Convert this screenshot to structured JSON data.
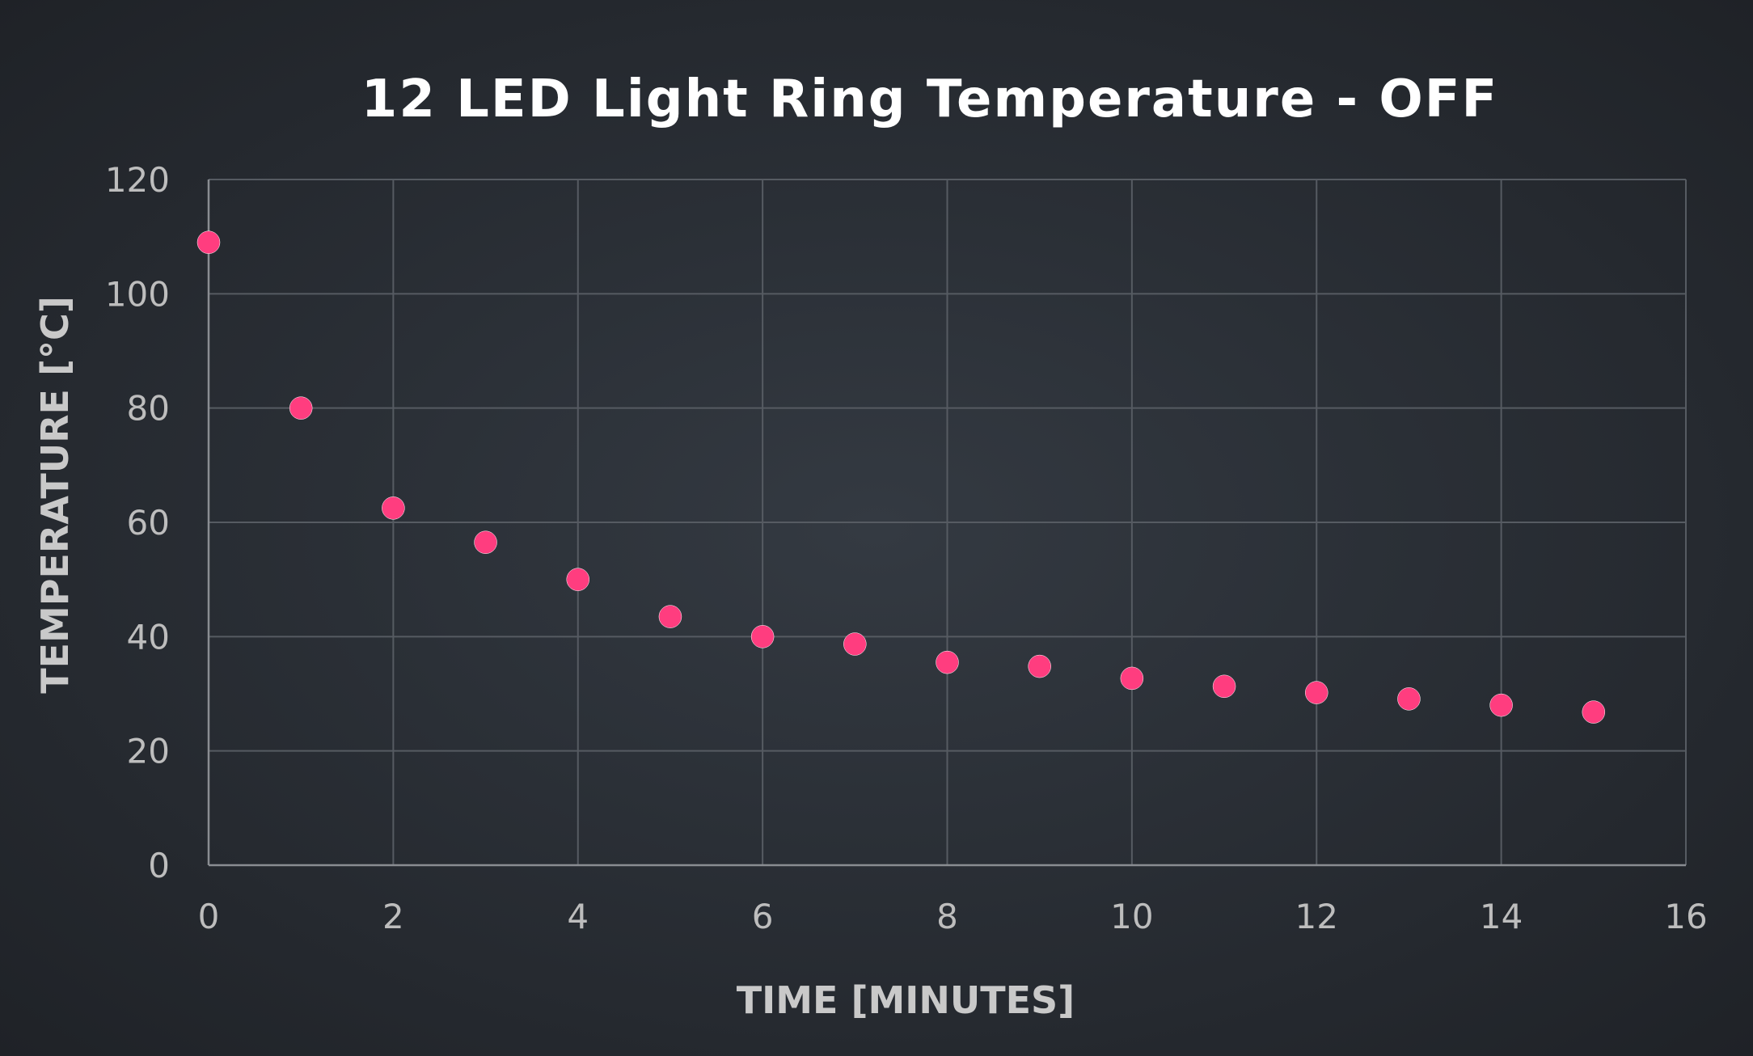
{
  "chart_data": {
    "type": "scatter",
    "title": "12 LED Light Ring Temperature - OFF",
    "xlabel": "TIME [MINUTES]",
    "ylabel": "TEMPERATURE [°C]",
    "xlim": [
      0,
      16
    ],
    "ylim": [
      0,
      120
    ],
    "xticks": [
      0,
      2,
      4,
      6,
      8,
      10,
      12,
      14,
      16
    ],
    "yticks": [
      0,
      20,
      40,
      60,
      80,
      100,
      120
    ],
    "grid": true,
    "legend": "none",
    "series": [
      {
        "x": [
          0,
          1,
          2,
          3,
          4,
          5,
          6,
          7,
          8,
          9,
          10,
          11,
          12,
          13,
          14,
          15
        ],
        "y": [
          109,
          80,
          62.5,
          56.5,
          50,
          43.5,
          40,
          38.7,
          35.5,
          34.8,
          32.7,
          31.3,
          30.2,
          29.1,
          28,
          26.8
        ],
        "color": "#ff3d7f"
      }
    ]
  },
  "colors": {
    "background": "#2b3037",
    "point": "#ff3d7f",
    "grid": "#565b62"
  }
}
